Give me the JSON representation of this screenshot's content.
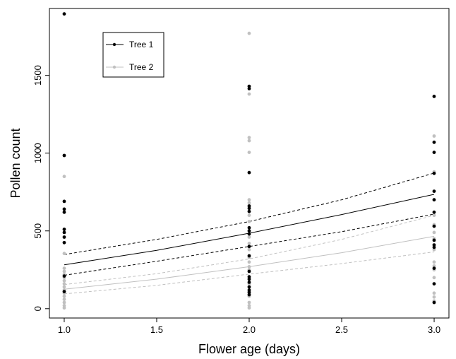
{
  "chart_data": {
    "type": "scatter",
    "title": "",
    "xlabel": "Flower age (days)",
    "ylabel": "Pollen count",
    "xlim": [
      0.92,
      3.08
    ],
    "ylim": [
      -60,
      1930
    ],
    "xticks": [
      1.0,
      1.5,
      2.0,
      2.5,
      3.0
    ],
    "xtick_labels": [
      "1.0",
      "1.5",
      "2.0",
      "2.5",
      "3.0"
    ],
    "yticks": [
      0,
      500,
      1000,
      1500
    ],
    "ytick_labels": [
      "0",
      "500",
      "1000",
      "1500"
    ],
    "grid": false,
    "legend_position": "top-left",
    "series": [
      {
        "name": "Tree 1",
        "color": "#000000",
        "points": [
          {
            "x": 1.0,
            "y": 1895
          },
          {
            "x": 1.0,
            "y": 985
          },
          {
            "x": 1.0,
            "y": 690
          },
          {
            "x": 1.0,
            "y": 640
          },
          {
            "x": 1.0,
            "y": 620
          },
          {
            "x": 1.0,
            "y": 510
          },
          {
            "x": 1.0,
            "y": 490
          },
          {
            "x": 1.0,
            "y": 460
          },
          {
            "x": 1.0,
            "y": 425
          },
          {
            "x": 1.0,
            "y": 210
          },
          {
            "x": 1.0,
            "y": 110
          },
          {
            "x": 2.0,
            "y": 1430
          },
          {
            "x": 2.0,
            "y": 1415
          },
          {
            "x": 2.0,
            "y": 875
          },
          {
            "x": 2.0,
            "y": 660
          },
          {
            "x": 2.0,
            "y": 645
          },
          {
            "x": 2.0,
            "y": 625
          },
          {
            "x": 2.0,
            "y": 520
          },
          {
            "x": 2.0,
            "y": 500
          },
          {
            "x": 2.0,
            "y": 480
          },
          {
            "x": 2.0,
            "y": 400
          },
          {
            "x": 2.0,
            "y": 340
          },
          {
            "x": 2.0,
            "y": 240
          },
          {
            "x": 2.0,
            "y": 205
          },
          {
            "x": 2.0,
            "y": 190
          },
          {
            "x": 2.0,
            "y": 170
          },
          {
            "x": 2.0,
            "y": 140
          },
          {
            "x": 2.0,
            "y": 120
          },
          {
            "x": 2.0,
            "y": 105
          },
          {
            "x": 2.0,
            "y": 90
          },
          {
            "x": 3.0,
            "y": 1365
          },
          {
            "x": 3.0,
            "y": 1070
          },
          {
            "x": 3.0,
            "y": 1005
          },
          {
            "x": 3.0,
            "y": 870
          },
          {
            "x": 3.0,
            "y": 755
          },
          {
            "x": 3.0,
            "y": 700
          },
          {
            "x": 3.0,
            "y": 620
          },
          {
            "x": 3.0,
            "y": 530
          },
          {
            "x": 3.0,
            "y": 440
          },
          {
            "x": 3.0,
            "y": 410
          },
          {
            "x": 3.0,
            "y": 395
          },
          {
            "x": 3.0,
            "y": 260
          },
          {
            "x": 3.0,
            "y": 160
          },
          {
            "x": 3.0,
            "y": 40
          }
        ],
        "fit": {
          "x": [
            1.0,
            1.5,
            2.0,
            2.5,
            3.0
          ],
          "y": [
            282,
            375,
            485,
            605,
            735
          ]
        },
        "ci_upper": {
          "x": [
            1.0,
            1.5,
            2.0,
            2.5,
            3.0
          ],
          "y": [
            348,
            445,
            560,
            700,
            872
          ]
        },
        "ci_lower": {
          "x": [
            1.0,
            1.5,
            2.0,
            2.5,
            3.0
          ],
          "y": [
            215,
            305,
            400,
            495,
            608
          ]
        }
      },
      {
        "name": "Tree 2",
        "color": "#c0c0c0",
        "points": [
          {
            "x": 1.0,
            "y": 850
          },
          {
            "x": 1.0,
            "y": 355
          },
          {
            "x": 1.0,
            "y": 260
          },
          {
            "x": 1.0,
            "y": 240
          },
          {
            "x": 1.0,
            "y": 220
          },
          {
            "x": 1.0,
            "y": 200
          },
          {
            "x": 1.0,
            "y": 180
          },
          {
            "x": 1.0,
            "y": 160
          },
          {
            "x": 1.0,
            "y": 140
          },
          {
            "x": 1.0,
            "y": 120
          },
          {
            "x": 1.0,
            "y": 100
          },
          {
            "x": 1.0,
            "y": 80
          },
          {
            "x": 1.0,
            "y": 60
          },
          {
            "x": 1.0,
            "y": 40
          },
          {
            "x": 1.0,
            "y": 20
          },
          {
            "x": 1.0,
            "y": 5
          },
          {
            "x": 2.0,
            "y": 1770
          },
          {
            "x": 2.0,
            "y": 1380
          },
          {
            "x": 2.0,
            "y": 1100
          },
          {
            "x": 2.0,
            "y": 1080
          },
          {
            "x": 2.0,
            "y": 1005
          },
          {
            "x": 2.0,
            "y": 700
          },
          {
            "x": 2.0,
            "y": 680
          },
          {
            "x": 2.0,
            "y": 600
          },
          {
            "x": 2.0,
            "y": 560
          },
          {
            "x": 2.0,
            "y": 460
          },
          {
            "x": 2.0,
            "y": 420
          },
          {
            "x": 2.0,
            "y": 380
          },
          {
            "x": 2.0,
            "y": 330
          },
          {
            "x": 2.0,
            "y": 300
          },
          {
            "x": 2.0,
            "y": 270
          },
          {
            "x": 2.0,
            "y": 250
          },
          {
            "x": 2.0,
            "y": 160
          },
          {
            "x": 2.0,
            "y": 110
          },
          {
            "x": 2.0,
            "y": 80
          },
          {
            "x": 2.0,
            "y": 40
          },
          {
            "x": 2.0,
            "y": 20
          },
          {
            "x": 2.0,
            "y": 5
          },
          {
            "x": 3.0,
            "y": 1110
          },
          {
            "x": 3.0,
            "y": 1070
          },
          {
            "x": 3.0,
            "y": 880
          },
          {
            "x": 3.0,
            "y": 600
          },
          {
            "x": 3.0,
            "y": 540
          },
          {
            "x": 3.0,
            "y": 490
          },
          {
            "x": 3.0,
            "y": 450
          },
          {
            "x": 3.0,
            "y": 380
          },
          {
            "x": 3.0,
            "y": 300
          },
          {
            "x": 3.0,
            "y": 275
          },
          {
            "x": 3.0,
            "y": 250
          },
          {
            "x": 3.0,
            "y": 200
          },
          {
            "x": 3.0,
            "y": 100
          },
          {
            "x": 3.0,
            "y": 75
          },
          {
            "x": 3.0,
            "y": 50
          }
        ],
        "fit": {
          "x": [
            1.0,
            1.5,
            2.0,
            2.5,
            3.0
          ],
          "y": [
            125,
            190,
            270,
            360,
            465
          ]
        },
        "ci_upper": {
          "x": [
            1.0,
            1.5,
            2.0,
            2.5,
            3.0
          ],
          "y": [
            155,
            225,
            320,
            445,
            600
          ]
        },
        "ci_lower": {
          "x": [
            1.0,
            1.5,
            2.0,
            2.5,
            3.0
          ],
          "y": [
            95,
            150,
            222,
            290,
            365
          ]
        }
      }
    ]
  }
}
